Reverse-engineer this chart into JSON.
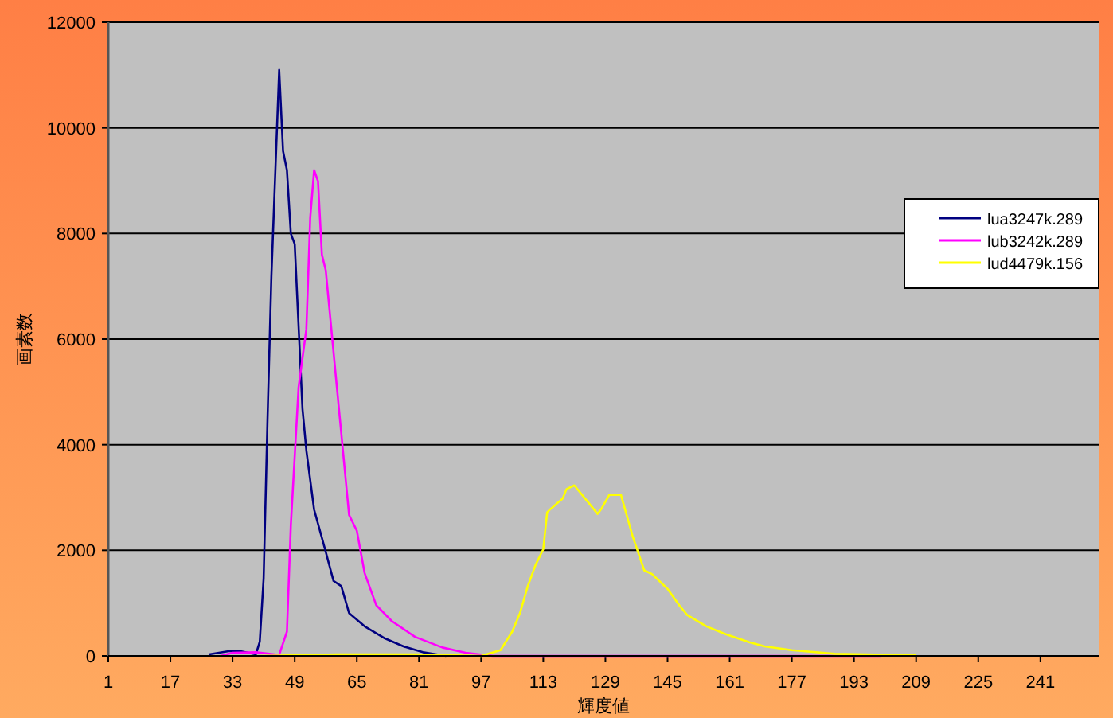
{
  "chart_data": {
    "type": "line",
    "xlabel": "輝度値",
    "ylabel": "画素数",
    "xlim": [
      1,
      256
    ],
    "xticks": [
      1,
      17,
      33,
      49,
      65,
      81,
      97,
      113,
      129,
      145,
      161,
      177,
      193,
      209,
      225,
      241
    ],
    "ylim": [
      0,
      12000
    ],
    "yticks": [
      0,
      2000,
      4000,
      6000,
      8000,
      10000,
      12000
    ],
    "grid": "y",
    "legend": "right",
    "marker": "none",
    "line_style": "solid",
    "series": [
      {
        "name": "lua3247k.289",
        "color": "#000080",
        "x": [
          27,
          32,
          35,
          39,
          40,
          41,
          42,
          43,
          45,
          46,
          47,
          48,
          49,
          51,
          52,
          54,
          57,
          59,
          61,
          63,
          67,
          72,
          77,
          82,
          88
        ],
        "values": [
          30,
          90,
          90,
          30,
          270,
          1470,
          4490,
          7200,
          11100,
          9560,
          9200,
          8000,
          7800,
          4680,
          3890,
          2770,
          1970,
          1420,
          1320,
          810,
          560,
          340,
          180,
          70,
          0
        ]
      },
      {
        "name": "lub3242k.289",
        "color": "#ff00ff",
        "x": [
          30,
          33,
          39,
          45,
          47,
          48,
          50,
          52,
          53,
          54,
          55,
          56,
          57,
          60,
          63,
          65,
          67,
          70,
          74,
          80,
          87,
          93,
          100,
          200
        ],
        "values": [
          0,
          60,
          70,
          20,
          460,
          2470,
          5090,
          6190,
          8300,
          9200,
          8990,
          7600,
          7300,
          4980,
          2670,
          2370,
          1570,
          960,
          660,
          360,
          160,
          60,
          0,
          0
        ]
      },
      {
        "name": "lud4479k.156",
        "color": "#ffff00",
        "x": [
          40,
          60,
          80,
          97,
          102,
          105,
          107,
          109,
          111,
          113,
          114,
          115,
          118,
          119,
          121,
          125,
          127,
          128,
          130,
          133,
          134,
          136,
          139,
          141,
          145,
          148,
          150,
          155,
          160,
          166,
          170,
          177,
          188,
          209
        ],
        "values": [
          0,
          30,
          30,
          0,
          110,
          460,
          810,
          1320,
          1720,
          2020,
          2720,
          2790,
          2980,
          3160,
          3230,
          2870,
          2690,
          2790,
          3050,
          3050,
          2790,
          2270,
          1620,
          1550,
          1270,
          960,
          780,
          560,
          410,
          260,
          180,
          110,
          40,
          10
        ]
      }
    ]
  }
}
